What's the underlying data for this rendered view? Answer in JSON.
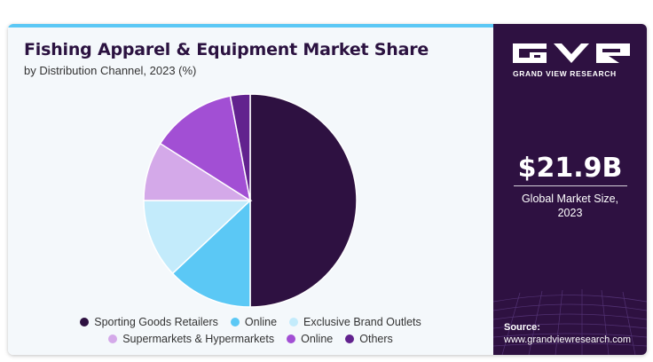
{
  "header": {
    "title": "Fishing Apparel & Equipment Market Share",
    "subtitle": "by Distribution Channel, 2023 (%)"
  },
  "brand": {
    "name": "GRAND VIEW RESEARCH",
    "logo_icon": "gvr-logo-icon"
  },
  "market": {
    "value": "$21.9B",
    "label_line1": "Global Market Size,",
    "label_line2": "2023"
  },
  "source": {
    "label": "Source:",
    "url": "www.grandviewresearch.com"
  },
  "chart_data": {
    "type": "pie",
    "title": "Fishing Apparel & Equipment Market Share",
    "subtitle": "by Distribution Channel, 2023 (%)",
    "legend_position": "bottom",
    "slices": [
      {
        "name": "Sporting Goods Retailers",
        "value": 50,
        "color": "#2e1141"
      },
      {
        "name": "Online",
        "value": 13,
        "color": "#5bc8f5"
      },
      {
        "name": "Exclusive Brand Outlets",
        "value": 12,
        "color": "#c3ebfb"
      },
      {
        "name": "Supermarkets & Hypermarkets",
        "value": 9,
        "color": "#d4a9e9"
      },
      {
        "name": "Online",
        "value": 13,
        "color": "#a24fd4"
      },
      {
        "name": "Others",
        "value": 3,
        "color": "#62228e"
      }
    ]
  }
}
